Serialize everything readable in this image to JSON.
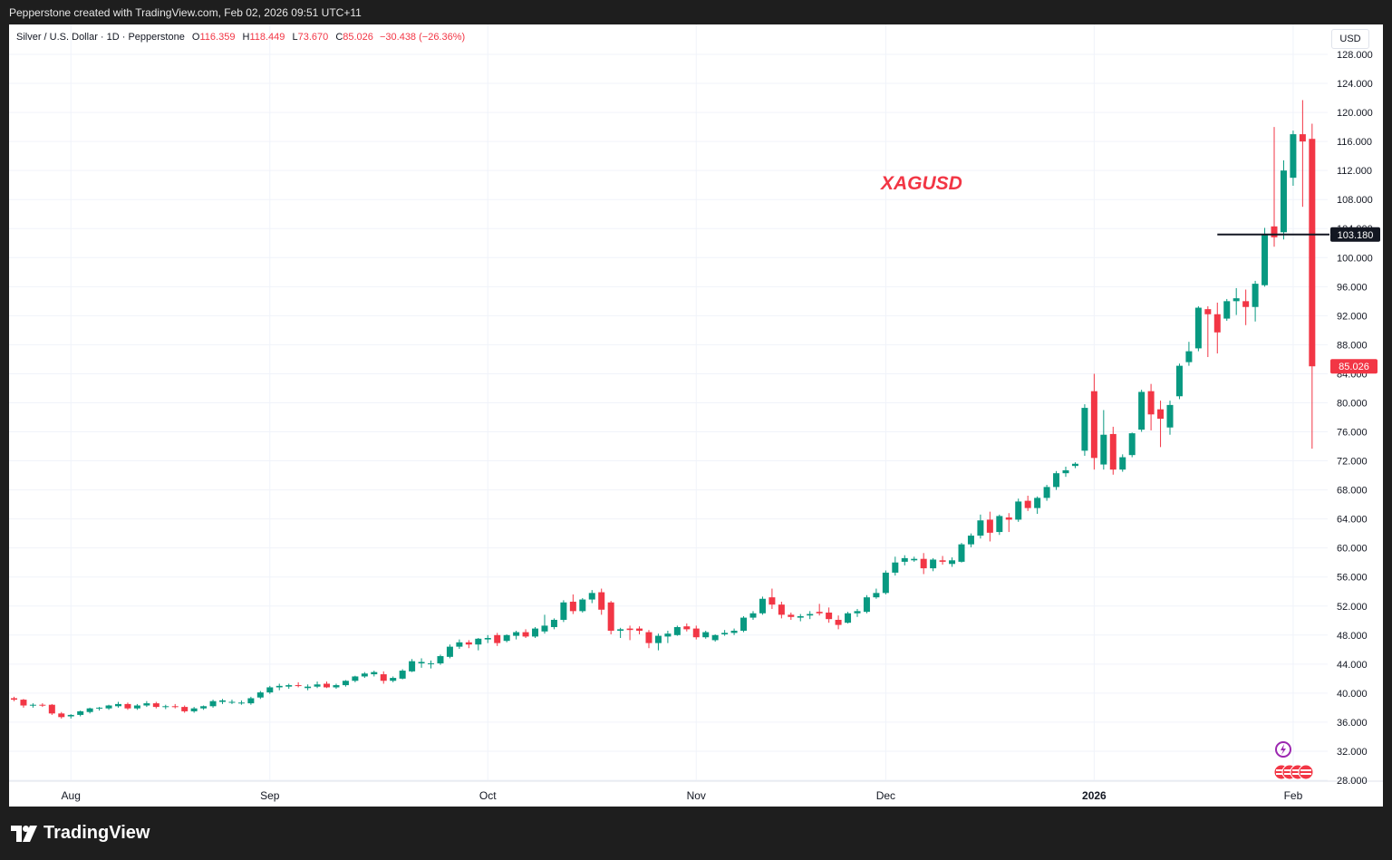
{
  "header": {
    "text": "Pepperstone created with TradingView.com, Feb 02, 2026 09:51 UTC+11"
  },
  "legend": {
    "symbol": "Silver / U.S. Dollar · 1D · Pepperstone",
    "open_label": "O",
    "open": "116.359",
    "high_label": "H",
    "high": "118.449",
    "low_label": "L",
    "low": "73.670",
    "close_label": "C",
    "close": "85.026",
    "change": "−30.438 (−26.36%)"
  },
  "currency_button": "USD",
  "footer": {
    "brand": "TradingView"
  },
  "colors": {
    "up": "#089981",
    "down": "#f23645",
    "annotation": "#f23645",
    "level_line": "#131722"
  },
  "chart_data": {
    "type": "candlestick",
    "title": "",
    "annotation": "XAGUSD",
    "ylim": [
      28,
      128
    ],
    "y_ticks": [
      28,
      32,
      36,
      40,
      44,
      48,
      52,
      56,
      60,
      64,
      68,
      72,
      76,
      80,
      84,
      88,
      92,
      96,
      100,
      104,
      108,
      112,
      116,
      120,
      124,
      128
    ],
    "x_labels": [
      {
        "label": "Aug",
        "index": 6
      },
      {
        "label": "Sep",
        "index": 27
      },
      {
        "label": "Oct",
        "index": 50
      },
      {
        "label": "Nov",
        "index": 72
      },
      {
        "label": "Dec",
        "index": 92
      },
      {
        "label": "2026",
        "index": 114,
        "bold": true
      },
      {
        "label": "Feb",
        "index": 135
      }
    ],
    "horizontal_line": {
      "value": 103.18,
      "label": "103.180"
    },
    "last_price": {
      "value": 85.026,
      "label": "85.026"
    },
    "grid": true,
    "candles": [
      {
        "o": 39.3,
        "h": 39.5,
        "l": 38.9,
        "c": 39.1
      },
      {
        "o": 39.1,
        "h": 39.2,
        "l": 38.0,
        "c": 38.3
      },
      {
        "o": 38.3,
        "h": 38.6,
        "l": 38.0,
        "c": 38.4
      },
      {
        "o": 38.4,
        "h": 38.6,
        "l": 38.1,
        "c": 38.3
      },
      {
        "o": 38.4,
        "h": 38.5,
        "l": 37.0,
        "c": 37.2
      },
      {
        "o": 37.2,
        "h": 37.4,
        "l": 36.5,
        "c": 36.7
      },
      {
        "o": 36.8,
        "h": 37.1,
        "l": 36.5,
        "c": 37.0
      },
      {
        "o": 37.0,
        "h": 37.6,
        "l": 36.8,
        "c": 37.5
      },
      {
        "o": 37.4,
        "h": 38.0,
        "l": 37.2,
        "c": 37.9
      },
      {
        "o": 37.9,
        "h": 38.1,
        "l": 37.6,
        "c": 38.0
      },
      {
        "o": 37.9,
        "h": 38.4,
        "l": 37.7,
        "c": 38.3
      },
      {
        "o": 38.2,
        "h": 38.8,
        "l": 38.0,
        "c": 38.5
      },
      {
        "o": 38.5,
        "h": 38.7,
        "l": 37.7,
        "c": 37.9
      },
      {
        "o": 37.9,
        "h": 38.5,
        "l": 37.7,
        "c": 38.3
      },
      {
        "o": 38.3,
        "h": 38.9,
        "l": 38.1,
        "c": 38.6
      },
      {
        "o": 38.6,
        "h": 38.8,
        "l": 37.9,
        "c": 38.1
      },
      {
        "o": 38.1,
        "h": 38.4,
        "l": 37.8,
        "c": 38.2
      },
      {
        "o": 38.2,
        "h": 38.5,
        "l": 37.9,
        "c": 38.1
      },
      {
        "o": 38.1,
        "h": 38.3,
        "l": 37.3,
        "c": 37.5
      },
      {
        "o": 37.5,
        "h": 38.1,
        "l": 37.3,
        "c": 37.9
      },
      {
        "o": 37.9,
        "h": 38.3,
        "l": 37.7,
        "c": 38.2
      },
      {
        "o": 38.2,
        "h": 39.1,
        "l": 38.0,
        "c": 38.9
      },
      {
        "o": 38.8,
        "h": 39.2,
        "l": 38.5,
        "c": 39.0
      },
      {
        "o": 38.8,
        "h": 39.1,
        "l": 38.5,
        "c": 38.8
      },
      {
        "o": 38.7,
        "h": 39.0,
        "l": 38.4,
        "c": 38.7
      },
      {
        "o": 38.6,
        "h": 39.5,
        "l": 38.4,
        "c": 39.3
      },
      {
        "o": 39.4,
        "h": 40.3,
        "l": 39.2,
        "c": 40.1
      },
      {
        "o": 40.1,
        "h": 41.0,
        "l": 39.9,
        "c": 40.8
      },
      {
        "o": 40.8,
        "h": 41.3,
        "l": 40.4,
        "c": 41.0
      },
      {
        "o": 40.9,
        "h": 41.3,
        "l": 40.6,
        "c": 41.1
      },
      {
        "o": 41.1,
        "h": 41.5,
        "l": 40.8,
        "c": 41.0
      },
      {
        "o": 40.7,
        "h": 41.2,
        "l": 40.4,
        "c": 40.9
      },
      {
        "o": 40.9,
        "h": 41.6,
        "l": 40.7,
        "c": 41.2
      },
      {
        "o": 41.3,
        "h": 41.6,
        "l": 40.7,
        "c": 40.8
      },
      {
        "o": 40.8,
        "h": 41.3,
        "l": 40.6,
        "c": 41.1
      },
      {
        "o": 41.1,
        "h": 41.8,
        "l": 40.9,
        "c": 41.7
      },
      {
        "o": 41.7,
        "h": 42.4,
        "l": 41.5,
        "c": 42.3
      },
      {
        "o": 42.3,
        "h": 42.9,
        "l": 42.1,
        "c": 42.7
      },
      {
        "o": 42.6,
        "h": 43.1,
        "l": 42.3,
        "c": 42.9
      },
      {
        "o": 42.6,
        "h": 43.0,
        "l": 41.3,
        "c": 41.7
      },
      {
        "o": 41.7,
        "h": 42.3,
        "l": 41.5,
        "c": 42.1
      },
      {
        "o": 42.0,
        "h": 43.3,
        "l": 41.9,
        "c": 43.1
      },
      {
        "o": 43.0,
        "h": 44.7,
        "l": 42.9,
        "c": 44.4
      },
      {
        "o": 44.1,
        "h": 44.8,
        "l": 43.5,
        "c": 44.3
      },
      {
        "o": 44.0,
        "h": 44.5,
        "l": 43.4,
        "c": 44.1
      },
      {
        "o": 44.1,
        "h": 45.3,
        "l": 43.9,
        "c": 45.1
      },
      {
        "o": 45.0,
        "h": 46.7,
        "l": 44.8,
        "c": 46.4
      },
      {
        "o": 46.4,
        "h": 47.4,
        "l": 46.1,
        "c": 47.0
      },
      {
        "o": 47.0,
        "h": 47.3,
        "l": 46.2,
        "c": 46.7
      },
      {
        "o": 46.7,
        "h": 47.6,
        "l": 45.9,
        "c": 47.5
      },
      {
        "o": 47.4,
        "h": 48.0,
        "l": 46.9,
        "c": 47.6
      },
      {
        "o": 48.0,
        "h": 48.3,
        "l": 46.5,
        "c": 46.9
      },
      {
        "o": 47.2,
        "h": 48.1,
        "l": 47.0,
        "c": 48.0
      },
      {
        "o": 47.9,
        "h": 48.6,
        "l": 47.4,
        "c": 48.4
      },
      {
        "o": 48.4,
        "h": 48.8,
        "l": 47.6,
        "c": 47.8
      },
      {
        "o": 47.8,
        "h": 49.1,
        "l": 47.6,
        "c": 48.9
      },
      {
        "o": 48.5,
        "h": 50.8,
        "l": 48.2,
        "c": 49.3
      },
      {
        "o": 49.1,
        "h": 50.3,
        "l": 48.8,
        "c": 50.1
      },
      {
        "o": 50.1,
        "h": 52.8,
        "l": 49.8,
        "c": 52.5
      },
      {
        "o": 52.6,
        "h": 53.6,
        "l": 50.9,
        "c": 51.3
      },
      {
        "o": 51.3,
        "h": 53.1,
        "l": 51.1,
        "c": 52.9
      },
      {
        "o": 52.9,
        "h": 54.2,
        "l": 52.4,
        "c": 53.8
      },
      {
        "o": 53.9,
        "h": 54.4,
        "l": 50.8,
        "c": 51.5
      },
      {
        "o": 52.5,
        "h": 52.7,
        "l": 48.1,
        "c": 48.6
      },
      {
        "o": 48.6,
        "h": 49.0,
        "l": 47.6,
        "c": 48.8
      },
      {
        "o": 48.9,
        "h": 49.3,
        "l": 47.3,
        "c": 48.7
      },
      {
        "o": 48.9,
        "h": 49.2,
        "l": 48.1,
        "c": 48.6
      },
      {
        "o": 48.4,
        "h": 48.7,
        "l": 46.2,
        "c": 46.9
      },
      {
        "o": 46.9,
        "h": 48.2,
        "l": 45.9,
        "c": 47.9
      },
      {
        "o": 47.8,
        "h": 48.6,
        "l": 46.9,
        "c": 48.2
      },
      {
        "o": 48.0,
        "h": 49.3,
        "l": 47.9,
        "c": 49.1
      },
      {
        "o": 49.2,
        "h": 49.6,
        "l": 48.5,
        "c": 48.8
      },
      {
        "o": 48.9,
        "h": 49.3,
        "l": 47.4,
        "c": 47.7
      },
      {
        "o": 47.7,
        "h": 48.6,
        "l": 47.5,
        "c": 48.4
      },
      {
        "o": 47.3,
        "h": 48.1,
        "l": 47.1,
        "c": 48.0
      },
      {
        "o": 48.1,
        "h": 48.7,
        "l": 47.9,
        "c": 48.3
      },
      {
        "o": 48.3,
        "h": 48.9,
        "l": 48.0,
        "c": 48.6
      },
      {
        "o": 48.6,
        "h": 50.6,
        "l": 48.4,
        "c": 50.4
      },
      {
        "o": 50.4,
        "h": 51.3,
        "l": 50.1,
        "c": 51.0
      },
      {
        "o": 51.0,
        "h": 53.3,
        "l": 50.8,
        "c": 53.0
      },
      {
        "o": 53.2,
        "h": 54.4,
        "l": 51.6,
        "c": 52.2
      },
      {
        "o": 52.2,
        "h": 52.6,
        "l": 50.3,
        "c": 50.8
      },
      {
        "o": 50.8,
        "h": 51.1,
        "l": 50.1,
        "c": 50.5
      },
      {
        "o": 50.4,
        "h": 50.9,
        "l": 49.9,
        "c": 50.6
      },
      {
        "o": 50.7,
        "h": 51.3,
        "l": 50.2,
        "c": 50.9
      },
      {
        "o": 51.2,
        "h": 52.3,
        "l": 50.7,
        "c": 51.0
      },
      {
        "o": 51.1,
        "h": 51.8,
        "l": 49.7,
        "c": 50.2
      },
      {
        "o": 50.1,
        "h": 50.7,
        "l": 48.8,
        "c": 49.4
      },
      {
        "o": 49.7,
        "h": 51.2,
        "l": 49.6,
        "c": 51.0
      },
      {
        "o": 51.0,
        "h": 51.6,
        "l": 50.5,
        "c": 51.3
      },
      {
        "o": 51.2,
        "h": 53.5,
        "l": 51.0,
        "c": 53.2
      },
      {
        "o": 53.2,
        "h": 54.4,
        "l": 53.0,
        "c": 53.8
      },
      {
        "o": 53.8,
        "h": 56.9,
        "l": 53.6,
        "c": 56.6
      },
      {
        "o": 56.6,
        "h": 58.8,
        "l": 56.2,
        "c": 58.0
      },
      {
        "o": 58.1,
        "h": 59.0,
        "l": 57.6,
        "c": 58.6
      },
      {
        "o": 58.3,
        "h": 58.8,
        "l": 58.1,
        "c": 58.5
      },
      {
        "o": 58.5,
        "h": 59.3,
        "l": 56.4,
        "c": 57.2
      },
      {
        "o": 57.2,
        "h": 58.6,
        "l": 56.8,
        "c": 58.4
      },
      {
        "o": 58.3,
        "h": 58.9,
        "l": 57.7,
        "c": 58.1
      },
      {
        "o": 57.8,
        "h": 58.7,
        "l": 57.4,
        "c": 58.3
      },
      {
        "o": 58.1,
        "h": 60.7,
        "l": 58.0,
        "c": 60.5
      },
      {
        "o": 60.5,
        "h": 62.0,
        "l": 60.1,
        "c": 61.7
      },
      {
        "o": 61.7,
        "h": 64.6,
        "l": 61.3,
        "c": 63.8
      },
      {
        "o": 63.9,
        "h": 65.0,
        "l": 60.9,
        "c": 62.1
      },
      {
        "o": 62.2,
        "h": 64.6,
        "l": 61.8,
        "c": 64.4
      },
      {
        "o": 64.2,
        "h": 64.8,
        "l": 62.2,
        "c": 63.9
      },
      {
        "o": 63.9,
        "h": 66.8,
        "l": 63.6,
        "c": 66.4
      },
      {
        "o": 66.5,
        "h": 67.2,
        "l": 65.1,
        "c": 65.5
      },
      {
        "o": 65.5,
        "h": 67.1,
        "l": 64.7,
        "c": 66.9
      },
      {
        "o": 66.9,
        "h": 68.7,
        "l": 66.5,
        "c": 68.4
      },
      {
        "o": 68.4,
        "h": 70.6,
        "l": 68.0,
        "c": 70.3
      },
      {
        "o": 70.3,
        "h": 71.2,
        "l": 69.8,
        "c": 70.7
      },
      {
        "o": 71.3,
        "h": 71.8,
        "l": 71.0,
        "c": 71.6
      },
      {
        "o": 73.4,
        "h": 79.8,
        "l": 72.7,
        "c": 79.3
      },
      {
        "o": 81.6,
        "h": 84.0,
        "l": 70.8,
        "c": 72.4
      },
      {
        "o": 71.5,
        "h": 79.0,
        "l": 70.8,
        "c": 75.6
      },
      {
        "o": 75.7,
        "h": 76.7,
        "l": 70.1,
        "c": 70.8
      },
      {
        "o": 70.8,
        "h": 72.9,
        "l": 70.5,
        "c": 72.5
      },
      {
        "o": 72.8,
        "h": 75.9,
        "l": 72.5,
        "c": 75.8
      },
      {
        "o": 76.3,
        "h": 81.8,
        "l": 76.0,
        "c": 81.5
      },
      {
        "o": 81.6,
        "h": 82.6,
        "l": 76.2,
        "c": 78.4
      },
      {
        "o": 79.1,
        "h": 80.3,
        "l": 73.9,
        "c": 77.8
      },
      {
        "o": 76.6,
        "h": 80.3,
        "l": 75.6,
        "c": 79.7
      },
      {
        "o": 80.9,
        "h": 85.4,
        "l": 80.5,
        "c": 85.1
      },
      {
        "o": 85.6,
        "h": 88.4,
        "l": 85.1,
        "c": 87.1
      },
      {
        "o": 87.5,
        "h": 93.3,
        "l": 87.1,
        "c": 93.1
      },
      {
        "o": 92.9,
        "h": 93.3,
        "l": 86.3,
        "c": 92.2
      },
      {
        "o": 92.2,
        "h": 93.8,
        "l": 86.8,
        "c": 89.7
      },
      {
        "o": 91.6,
        "h": 94.3,
        "l": 91.3,
        "c": 94.0
      },
      {
        "o": 94.0,
        "h": 95.8,
        "l": 92.1,
        "c": 94.4
      },
      {
        "o": 94.0,
        "h": 95.6,
        "l": 90.7,
        "c": 93.2
      },
      {
        "o": 93.2,
        "h": 96.8,
        "l": 91.2,
        "c": 96.4
      },
      {
        "o": 96.2,
        "h": 104.1,
        "l": 96.0,
        "c": 103.2
      },
      {
        "o": 104.3,
        "h": 118.0,
        "l": 101.5,
        "c": 102.8
      },
      {
        "o": 103.5,
        "h": 113.4,
        "l": 102.5,
        "c": 112.0
      },
      {
        "o": 111.0,
        "h": 117.5,
        "l": 109.9,
        "c": 117.0
      },
      {
        "o": 117.0,
        "h": 121.7,
        "l": 107.0,
        "c": 116.0
      },
      {
        "o": 116.359,
        "h": 118.449,
        "l": 73.67,
        "c": 85.026
      }
    ]
  }
}
